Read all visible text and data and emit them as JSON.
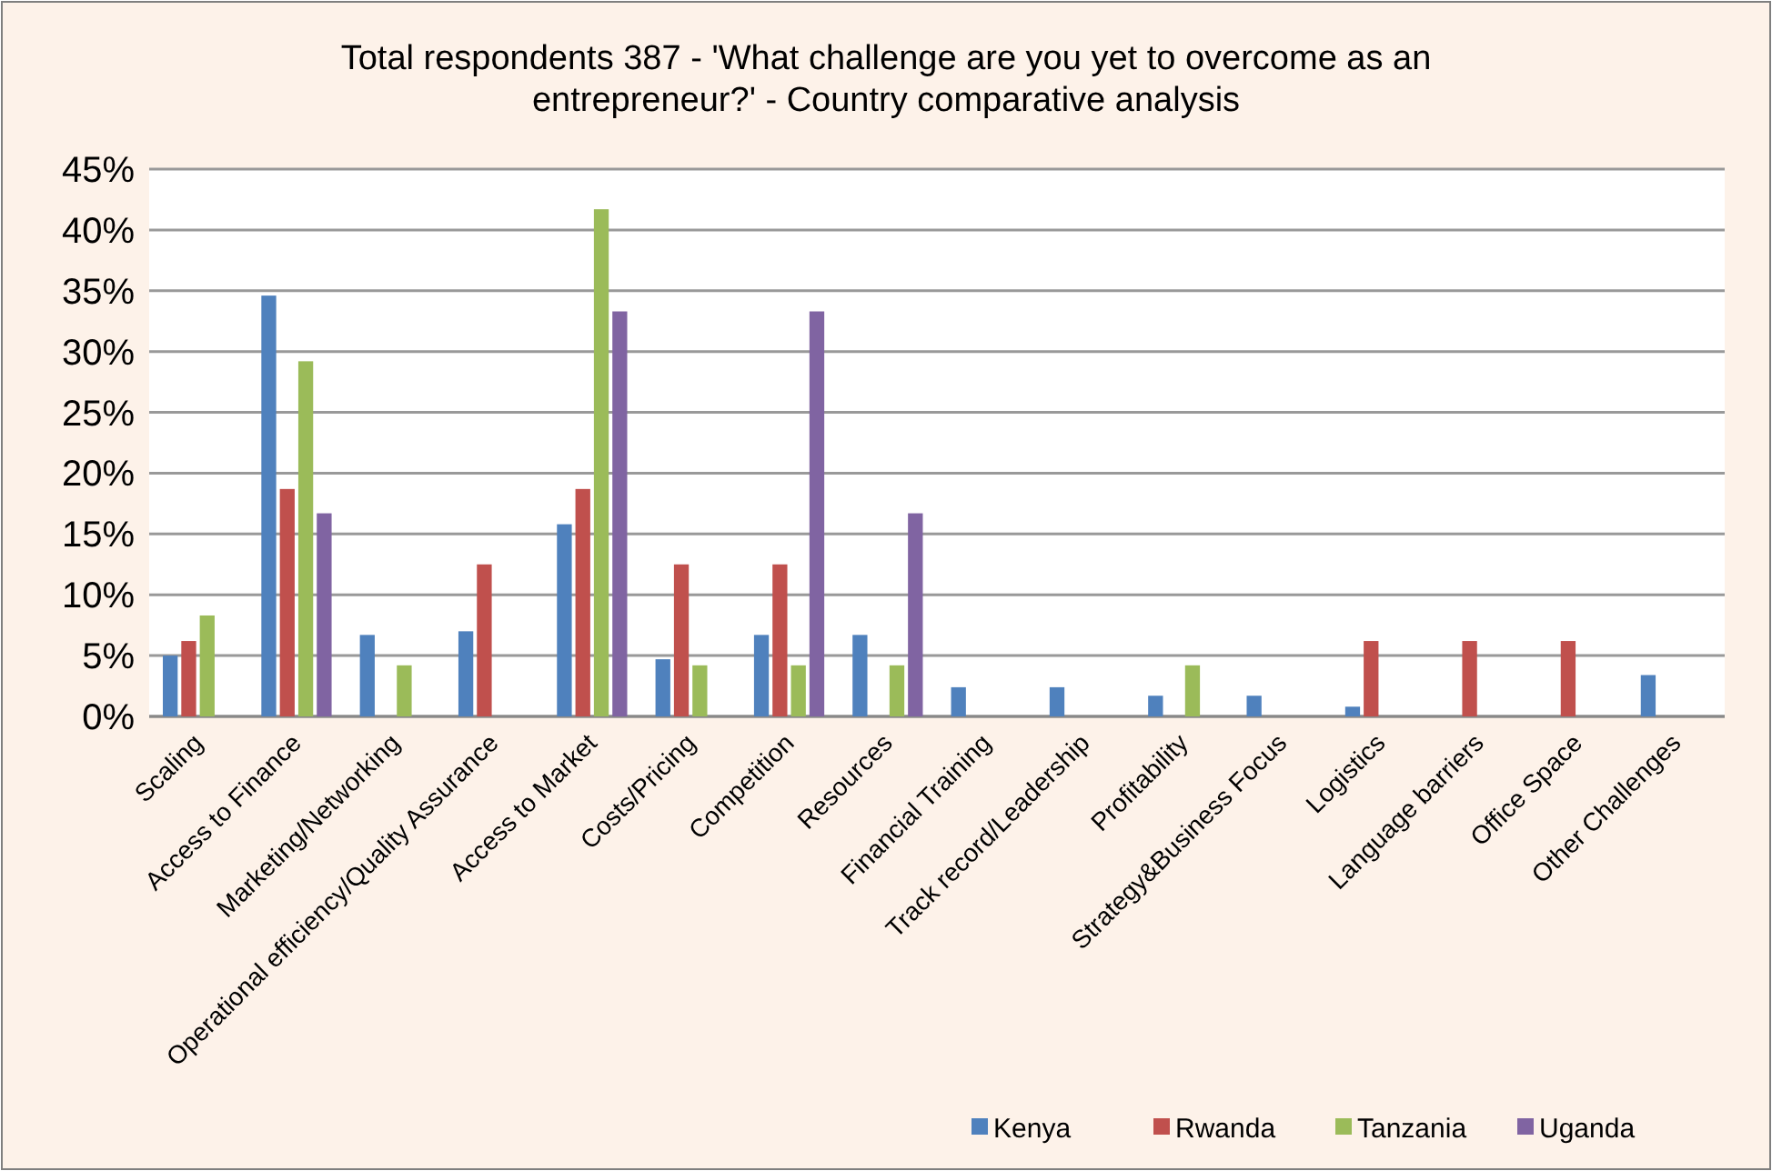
{
  "chart_data": {
    "type": "bar",
    "title": "Total respondents 387 - 'What challenge are you yet to overcome as an entrepreneur?' - Country comparative analysis",
    "categories": [
      "Scaling",
      "Access to Finance",
      "Marketing/Networking",
      "Operational efficiency/Quality Assurance",
      "Access to Market",
      "Costs/Pricing",
      "Competition",
      "Resources",
      "Financial Training",
      "Track record/Leadership",
      "Profitability",
      "Strategy&Business Focus",
      "Logistics",
      "Language barriers",
      "Office Space",
      "Other Challenges"
    ],
    "series": [
      {
        "name": "Kenya",
        "color": "#4f81bd",
        "values": [
          5.0,
          34.6,
          6.7,
          7.0,
          15.8,
          4.7,
          6.7,
          6.7,
          2.4,
          2.4,
          1.7,
          1.7,
          0.8,
          null,
          null,
          3.4
        ]
      },
      {
        "name": "Rwanda",
        "color": "#c0504d",
        "values": [
          6.2,
          18.7,
          null,
          12.5,
          18.7,
          12.5,
          12.5,
          null,
          null,
          null,
          null,
          null,
          6.2,
          6.2,
          6.2,
          null
        ]
      },
      {
        "name": "Tanzania",
        "color": "#9bbb59",
        "values": [
          8.3,
          29.2,
          4.2,
          null,
          41.7,
          4.2,
          4.2,
          4.2,
          null,
          null,
          4.2,
          null,
          null,
          null,
          null,
          null
        ]
      },
      {
        "name": "Uganda",
        "color": "#8064a2",
        "values": [
          null,
          16.7,
          null,
          null,
          33.3,
          null,
          33.3,
          16.7,
          null,
          null,
          null,
          null,
          null,
          null,
          null,
          null
        ]
      }
    ],
    "ylim": [
      0,
      45
    ],
    "yticks": [
      {
        "value": 0,
        "label": "0%"
      },
      {
        "value": 5,
        "label": "5%"
      },
      {
        "value": 10,
        "label": "10%"
      },
      {
        "value": 15,
        "label": "15%"
      },
      {
        "value": 20,
        "label": "20%"
      },
      {
        "value": 25,
        "label": "25%"
      },
      {
        "value": 30,
        "label": "30%"
      },
      {
        "value": 35,
        "label": "35%"
      },
      {
        "value": 40,
        "label": "40%"
      },
      {
        "value": 45,
        "label": "45%"
      }
    ],
    "grid": "y",
    "legend": "bottom right"
  }
}
